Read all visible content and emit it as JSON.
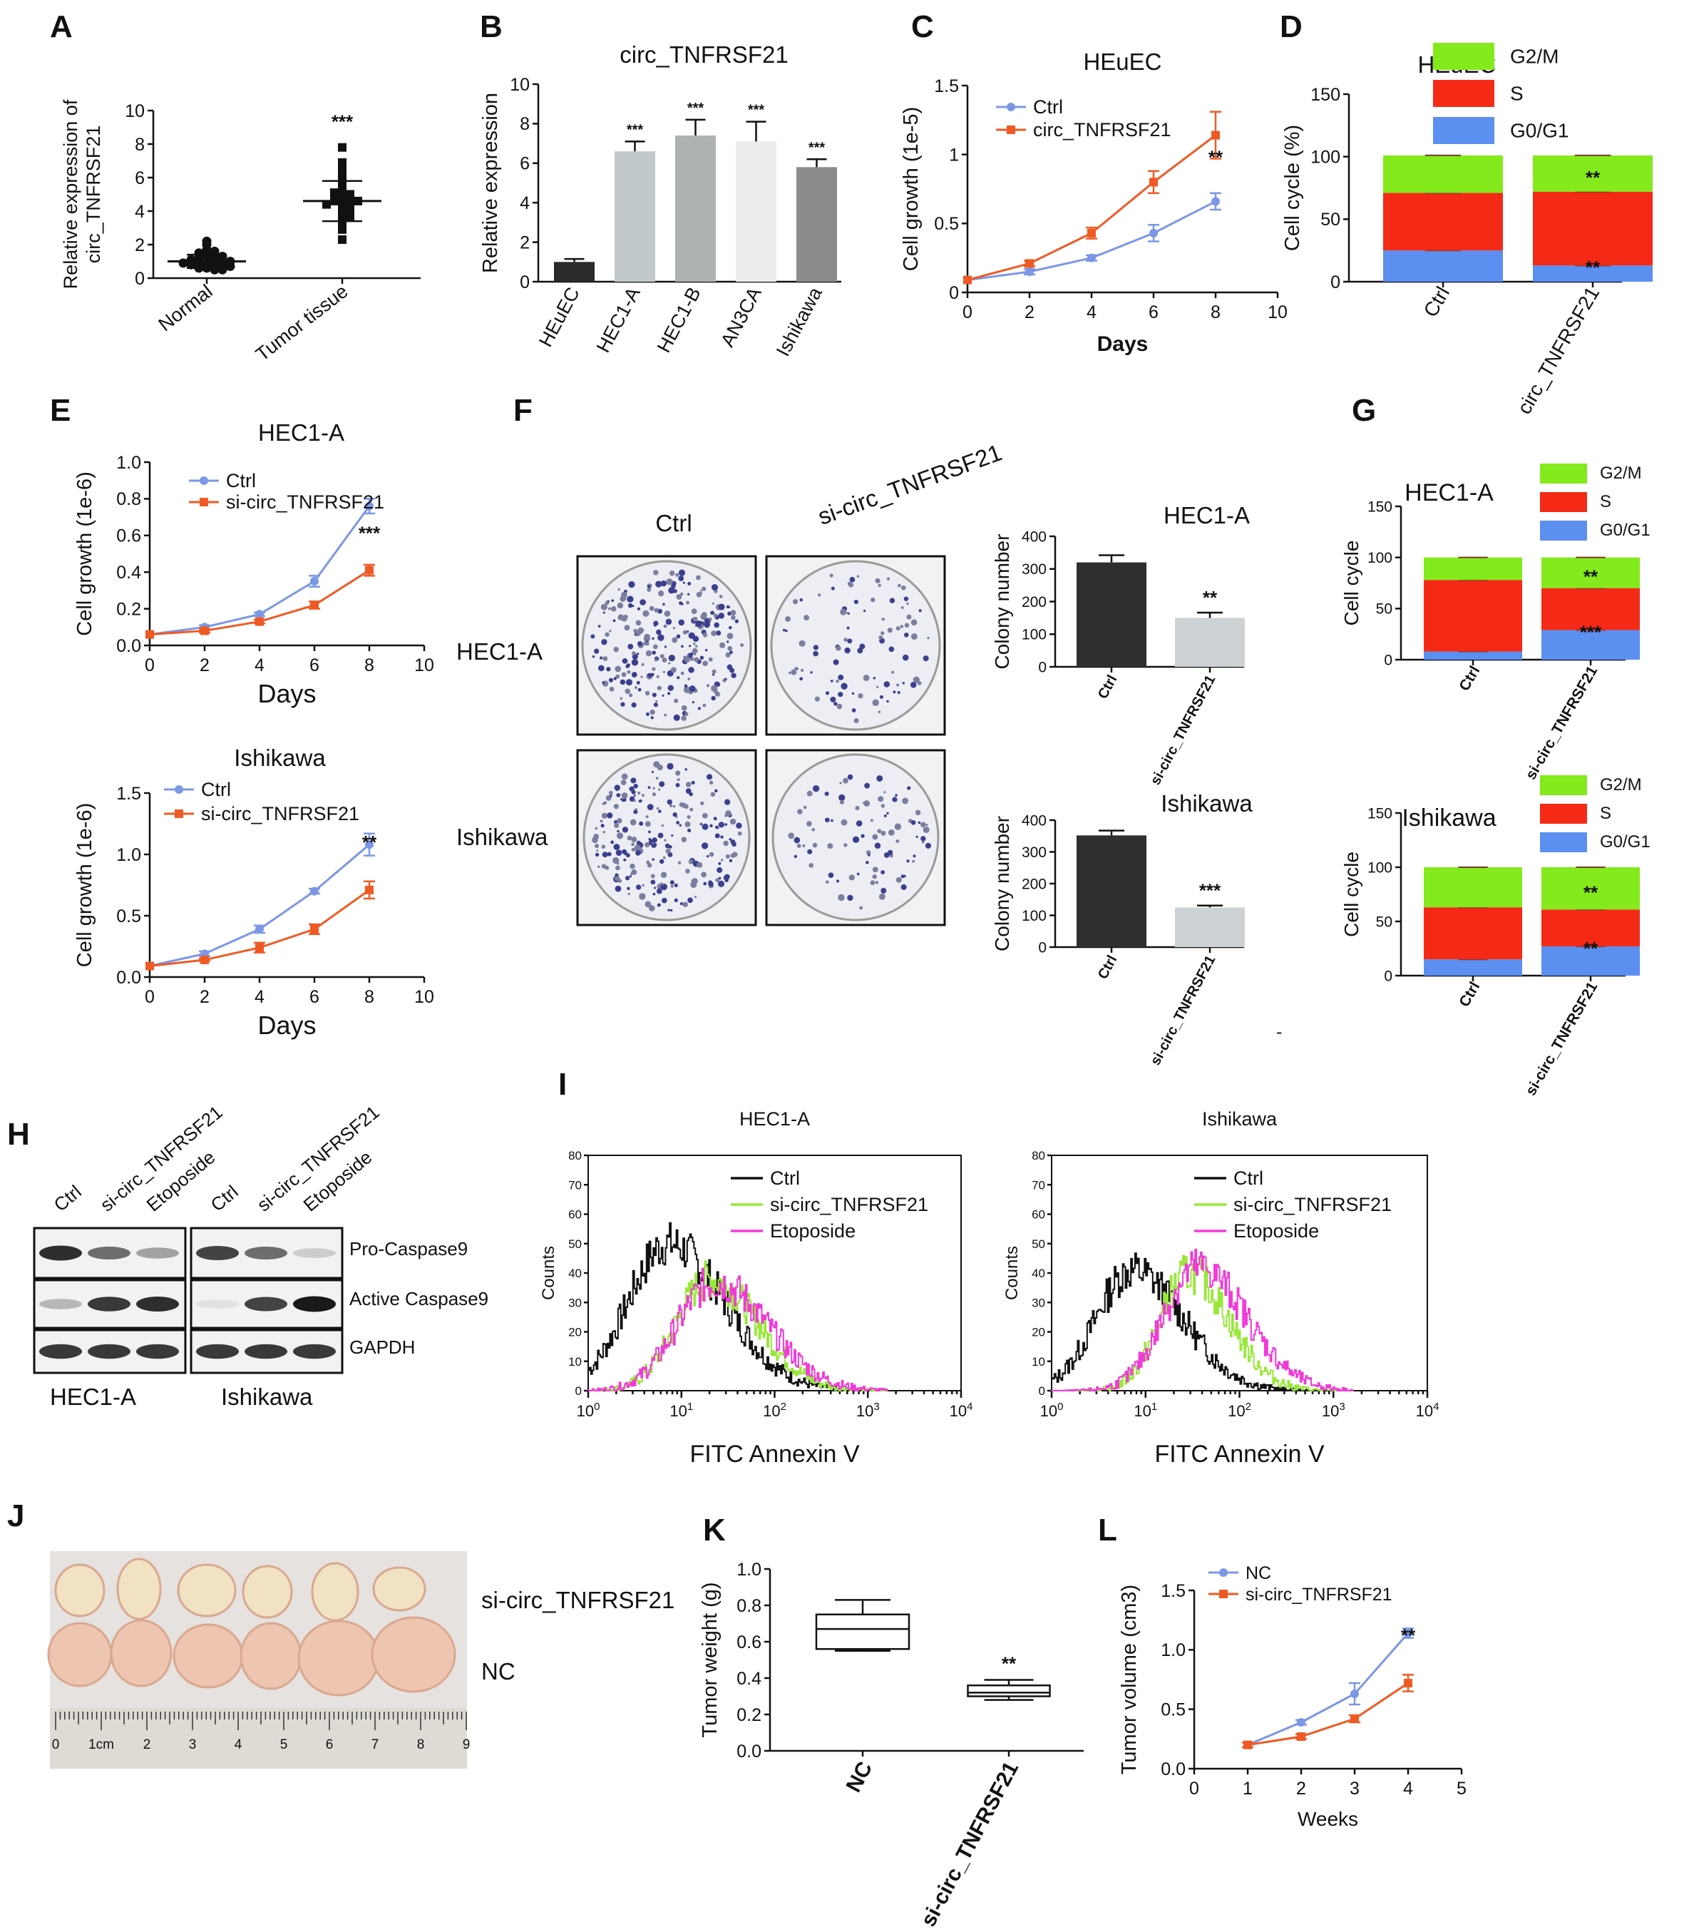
{
  "panel_letters": [
    "A",
    "B",
    "C",
    "D",
    "E",
    "F",
    "G",
    "H",
    "I",
    "J",
    "K",
    "L"
  ],
  "colors": {
    "blue": "#7b97e6",
    "orange": "#ef5a24",
    "green": "#84ea1c",
    "red": "#f42a16",
    "cyan": "#5b8ff0",
    "dark": "#2f2f2f",
    "lime": "#99e83a",
    "magenta": "#f13ad8"
  },
  "chart_data": [
    {
      "id": "A",
      "type": "scatter",
      "title": "",
      "ylabel": "Relative expression of circ_TNFRSF21",
      "ylim": [
        0,
        10
      ],
      "yticks": [
        0,
        2,
        4,
        6,
        8,
        10
      ],
      "categories": [
        "Normal",
        "Tumor tissue"
      ],
      "means": [
        1.0,
        4.6
      ],
      "sd": [
        0.4,
        1.2
      ],
      "significance": [
        "",
        "***"
      ],
      "points": [
        [
          0.8,
          0.7,
          0.9,
          1.1,
          1.3,
          0.6,
          0.5,
          1.0,
          1.2,
          0.9,
          0.8,
          1.4,
          1.6,
          2.0,
          2.2,
          1.7,
          1.5,
          0.7,
          0.8,
          1.1,
          1.0,
          0.9,
          0.6,
          0.5,
          1.2,
          1.3,
          0.7
        ],
        [
          2.3,
          2.9,
          3.2,
          3.5,
          3.8,
          4.0,
          4.1,
          4.2,
          4.3,
          4.4,
          4.5,
          4.6,
          4.6,
          4.7,
          4.8,
          4.9,
          5.0,
          5.1,
          5.3,
          5.5,
          5.7,
          5.9,
          6.2,
          6.5,
          6.9,
          7.8,
          4.4,
          3.7
        ]
      ]
    },
    {
      "id": "B",
      "type": "bar",
      "title": "circ_TNFRSF21",
      "ylabel": "Relative expression",
      "ylim": [
        0,
        10
      ],
      "yticks": [
        0,
        2,
        4,
        6,
        8,
        10
      ],
      "categories": [
        "HEuEC",
        "HEC1-A",
        "HEC1-B",
        "AN3CA",
        "Ishikawa"
      ],
      "values": [
        1.0,
        6.6,
        7.4,
        7.1,
        5.8
      ],
      "errors": [
        0.15,
        0.5,
        0.8,
        1.0,
        0.4
      ],
      "significance": [
        "",
        "***",
        "***",
        "***",
        "***"
      ]
    },
    {
      "id": "C",
      "type": "line",
      "title": "HEuEC",
      "xlabel": "Days",
      "ylabel": "Cell growth (1e-5)",
      "xlim": [
        0,
        10
      ],
      "ylim": [
        0,
        1.5
      ],
      "xticks": [
        0,
        2,
        4,
        6,
        8,
        10
      ],
      "yticks": [
        0.0,
        0.5,
        1.0,
        1.5
      ],
      "x": [
        0,
        2,
        4,
        6,
        8
      ],
      "series": [
        {
          "name": "Ctrl",
          "values": [
            0.09,
            0.15,
            0.25,
            0.43,
            0.66
          ],
          "errors": [
            0,
            0.02,
            0.02,
            0.06,
            0.06
          ]
        },
        {
          "name": "circ_TNFRSF21",
          "values": [
            0.09,
            0.21,
            0.43,
            0.8,
            1.14
          ],
          "errors": [
            0,
            0.02,
            0.04,
            0.08,
            0.17
          ]
        }
      ],
      "significance": "**"
    },
    {
      "id": "D",
      "type": "bar",
      "stacked": true,
      "title": "HEuEC",
      "ylabel": "Cell cycle (%)",
      "ylim": [
        0,
        150
      ],
      "yticks": [
        0,
        50,
        100,
        150
      ],
      "categories": [
        "Ctrl",
        "circ_TNFRSF21"
      ],
      "series": [
        {
          "name": "G0/G1",
          "values": [
            25,
            13
          ]
        },
        {
          "name": "S",
          "values": [
            46,
            59
          ]
        },
        {
          "name": "G2/M",
          "values": [
            30,
            29
          ]
        }
      ],
      "legend": [
        "G2/M",
        "S",
        "G0/G1"
      ],
      "significance": [
        "**",
        "**"
      ]
    },
    {
      "id": "E1",
      "type": "line",
      "title": "HEC1-A",
      "xlabel": "Days",
      "ylabel": "Cell growth (1e-6)",
      "xlim": [
        0,
        10
      ],
      "ylim": [
        0,
        1.0
      ],
      "xticks": [
        0,
        2,
        4,
        6,
        8,
        10
      ],
      "yticks": [
        0.0,
        0.2,
        0.4,
        0.6,
        0.8,
        1.0
      ],
      "x": [
        0,
        2,
        4,
        6,
        8
      ],
      "series": [
        {
          "name": "Ctrl",
          "values": [
            0.06,
            0.1,
            0.17,
            0.35,
            0.76
          ],
          "errors": [
            0,
            0.01,
            0.01,
            0.03,
            0.04
          ]
        },
        {
          "name": "si-circ_TNFRSF21",
          "values": [
            0.06,
            0.08,
            0.13,
            0.22,
            0.41
          ],
          "errors": [
            0,
            0.01,
            0.01,
            0.02,
            0.03
          ]
        }
      ],
      "significance": "***"
    },
    {
      "id": "E2",
      "type": "line",
      "title": "Ishikawa",
      "xlabel": "Days",
      "ylabel": "Cell growth (1e-6)",
      "xlim": [
        0,
        10
      ],
      "ylim": [
        0,
        1.5
      ],
      "xticks": [
        0,
        2,
        4,
        6,
        8,
        10
      ],
      "yticks": [
        0.0,
        0.5,
        1.0,
        1.5
      ],
      "x": [
        0,
        2,
        4,
        6,
        8
      ],
      "series": [
        {
          "name": "Ctrl",
          "values": [
            0.09,
            0.19,
            0.39,
            0.7,
            1.08
          ],
          "errors": [
            0,
            0.02,
            0.03,
            0.02,
            0.09
          ]
        },
        {
          "name": "si-circ_TNFRSF21",
          "values": [
            0.09,
            0.14,
            0.24,
            0.39,
            0.71
          ],
          "errors": [
            0,
            0.01,
            0.04,
            0.04,
            0.07
          ]
        }
      ],
      "significance": "**"
    },
    {
      "id": "F1",
      "type": "bar",
      "title": "HEC1-A",
      "ylabel": "Colony number",
      "ylim": [
        0,
        400
      ],
      "yticks": [
        0,
        100,
        200,
        300,
        400
      ],
      "categories": [
        "Ctrl",
        "si-circ_TNFRSF21"
      ],
      "values": [
        320,
        150
      ],
      "errors": [
        22,
        16
      ],
      "significance": [
        "",
        "**"
      ]
    },
    {
      "id": "F2",
      "type": "bar",
      "title": "Ishikawa",
      "ylabel": "Colony number",
      "ylim": [
        0,
        400
      ],
      "yticks": [
        0,
        100,
        200,
        300,
        400
      ],
      "categories": [
        "Ctrl",
        "si-circ_TNFRSF21"
      ],
      "values": [
        352,
        125
      ],
      "errors": [
        15,
        6
      ],
      "significance": [
        "",
        "***"
      ]
    },
    {
      "id": "G1",
      "type": "bar",
      "stacked": true,
      "title": "HEC1-A",
      "ylabel": "Cell cycle",
      "ylim": [
        0,
        150
      ],
      "yticks": [
        0,
        50,
        100,
        150
      ],
      "categories": [
        "Ctrl",
        "si-circ_TNFRSF21"
      ],
      "series": [
        {
          "name": "G0/G1",
          "values": [
            8,
            29
          ]
        },
        {
          "name": "S",
          "values": [
            70,
            41
          ]
        },
        {
          "name": "G2/M",
          "values": [
            22,
            30
          ]
        }
      ],
      "legend": [
        "G2/M",
        "S",
        "G0/G1"
      ],
      "significance": [
        "**",
        "***"
      ]
    },
    {
      "id": "G2",
      "type": "bar",
      "stacked": true,
      "title": "Ishikawa",
      "ylabel": "Cell cycle",
      "ylim": [
        0,
        150
      ],
      "yticks": [
        0,
        50,
        100,
        150
      ],
      "categories": [
        "Ctrl",
        "si-circ_TNFRSF21"
      ],
      "series": [
        {
          "name": "G0/G1",
          "values": [
            15,
            27
          ]
        },
        {
          "name": "S",
          "values": [
            48,
            34
          ]
        },
        {
          "name": "G2/M",
          "values": [
            37,
            39
          ]
        }
      ],
      "legend": [
        "G2/M",
        "S",
        "G0/G1"
      ],
      "significance": [
        "**",
        "**"
      ]
    },
    {
      "id": "I1",
      "type": "line",
      "title": "HEC1-A",
      "xlabel": "FITC Annexin V",
      "ylabel": "Counts",
      "ylim": [
        0,
        80
      ],
      "yticks": [
        0,
        10,
        20,
        30,
        40,
        50,
        60,
        70,
        80
      ],
      "xscale": "log",
      "xticks": [
        "10^0",
        "10^1",
        "10^2",
        "10^3",
        "10^4"
      ],
      "series": [
        {
          "name": "Ctrl",
          "peak_log": 0.85,
          "width": 0.45,
          "height": 50
        },
        {
          "name": "si-circ_TNFRSF21",
          "peak_log": 1.3,
          "width": 0.38,
          "height": 38
        },
        {
          "name": "Etoposide",
          "peak_log": 1.35,
          "width": 0.42,
          "height": 37
        }
      ]
    },
    {
      "id": "I2",
      "type": "line",
      "title": "Ishikawa",
      "xlabel": "FITC Annexin V",
      "ylabel": "Counts",
      "ylim": [
        0,
        80
      ],
      "yticks": [
        0,
        10,
        20,
        30,
        40,
        50,
        60,
        70,
        80
      ],
      "xscale": "log",
      "xticks": [
        "10^0",
        "10^1",
        "10^2",
        "10^3",
        "10^4"
      ],
      "series": [
        {
          "name": "Ctrl",
          "peak_log": 0.85,
          "width": 0.4,
          "height": 41
        },
        {
          "name": "si-circ_TNFRSF21",
          "peak_log": 1.45,
          "width": 0.32,
          "height": 40
        },
        {
          "name": "Etoposide",
          "peak_log": 1.55,
          "width": 0.38,
          "height": 42
        }
      ]
    },
    {
      "id": "K",
      "type": "box",
      "ylabel": "Tumor weight (g)",
      "ylim": [
        0,
        1.0
      ],
      "yticks": [
        0.0,
        0.2,
        0.4,
        0.6,
        0.8,
        1.0
      ],
      "categories": [
        "NC",
        "si-circ_TNFRSF21"
      ],
      "boxes": [
        {
          "min": 0.55,
          "q1": 0.56,
          "median": 0.67,
          "q3": 0.75,
          "max": 0.83
        },
        {
          "min": 0.28,
          "q1": 0.3,
          "median": 0.32,
          "q3": 0.36,
          "max": 0.39
        }
      ],
      "significance": [
        "",
        "**"
      ]
    },
    {
      "id": "L",
      "type": "line",
      "xlabel": "Weeks",
      "ylabel": "Tumor volume (cm3)",
      "xlim": [
        0,
        5
      ],
      "ylim": [
        0,
        1.5
      ],
      "xticks": [
        0,
        1,
        2,
        3,
        4,
        5
      ],
      "yticks": [
        0.0,
        0.5,
        1.0,
        1.5
      ],
      "x": [
        1,
        2,
        3,
        4
      ],
      "series": [
        {
          "name": "NC",
          "values": [
            0.2,
            0.39,
            0.63,
            1.14
          ],
          "errors": [
            0.02,
            0.02,
            0.09,
            0.04
          ]
        },
        {
          "name": "si-circ_TNFRSF21",
          "values": [
            0.2,
            0.27,
            0.42,
            0.72
          ],
          "errors": [
            0.02,
            0.02,
            0.03,
            0.07
          ]
        }
      ],
      "significance": "**"
    }
  ],
  "panel_F": {
    "columns": [
      "Ctrl",
      "si-circ_TNFRSF21"
    ],
    "rows": [
      "HEC1-A",
      "Ishikawa"
    ]
  },
  "panel_H": {
    "lanes": [
      "Ctrl",
      "si-circ_TNFRSF21",
      "Etoposide"
    ],
    "bands": [
      "Pro-Caspase9",
      "Active Caspase9",
      "GAPDH"
    ],
    "cells": [
      "HEC1-A",
      "Ishikawa"
    ],
    "intensity": {
      "HEC1-A": [
        [
          0.9,
          0.6,
          0.35
        ],
        [
          0.25,
          0.85,
          0.9
        ],
        [
          0.85,
          0.85,
          0.85
        ]
      ],
      "Ishikawa": [
        [
          0.8,
          0.6,
          0.15
        ],
        [
          0.05,
          0.8,
          1.0
        ],
        [
          0.85,
          0.85,
          0.85
        ]
      ]
    }
  },
  "panel_J": {
    "labels": [
      "si-circ_TNFRSF21",
      "NC"
    ],
    "ruler": [
      "0",
      "1cm",
      "2",
      "3",
      "4",
      "5",
      "6",
      "7",
      "8",
      "9"
    ]
  },
  "panel_G_extra": "-"
}
